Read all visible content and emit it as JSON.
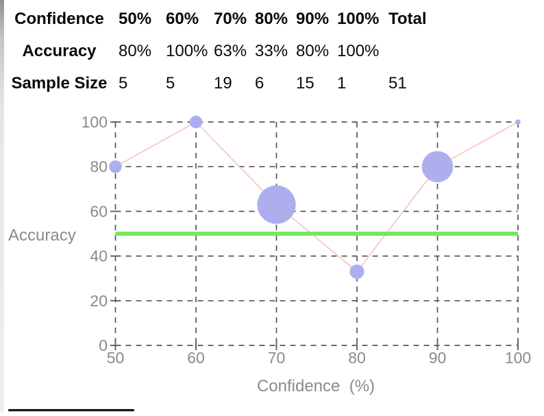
{
  "table": {
    "rows": [
      {
        "label": "Confidence",
        "values": [
          "50%",
          "60%",
          "70%",
          "80%",
          "90%",
          "100%",
          "Total"
        ]
      },
      {
        "label": "Accuracy",
        "values": [
          "80%",
          "100%",
          "63%",
          "33%",
          "80%",
          "100%",
          ""
        ]
      },
      {
        "label": "Sample Size",
        "values": [
          "5",
          "5",
          "19",
          "6",
          "15",
          "1",
          "51"
        ]
      }
    ]
  },
  "chart_data": {
    "type": "scatter",
    "subtype": "bubble-line",
    "x": [
      50,
      60,
      70,
      80,
      90,
      100
    ],
    "series": [
      {
        "name": "Accuracy",
        "values": [
          80,
          100,
          63,
          33,
          80,
          100
        ],
        "bubble_sizes": [
          5,
          5,
          19,
          6,
          15,
          1
        ]
      }
    ],
    "reference_line": {
      "y": 50,
      "color": "#74e95c"
    },
    "xlabel": "Confidence  (%)",
    "ylabel": "Accuracy",
    "xlim": [
      50,
      100
    ],
    "ylim": [
      0,
      100
    ],
    "x_ticks": [
      50,
      60,
      70,
      80,
      90,
      100
    ],
    "y_ticks": [
      0,
      20,
      40,
      60,
      80,
      100
    ],
    "grid": true,
    "legend": "none",
    "colors": {
      "bubble": "#aeaeef",
      "line": "#f6c2c2",
      "grid": "#555555",
      "tick_text": "#8a8a8a",
      "axis_text": "#8a8a8a"
    }
  }
}
